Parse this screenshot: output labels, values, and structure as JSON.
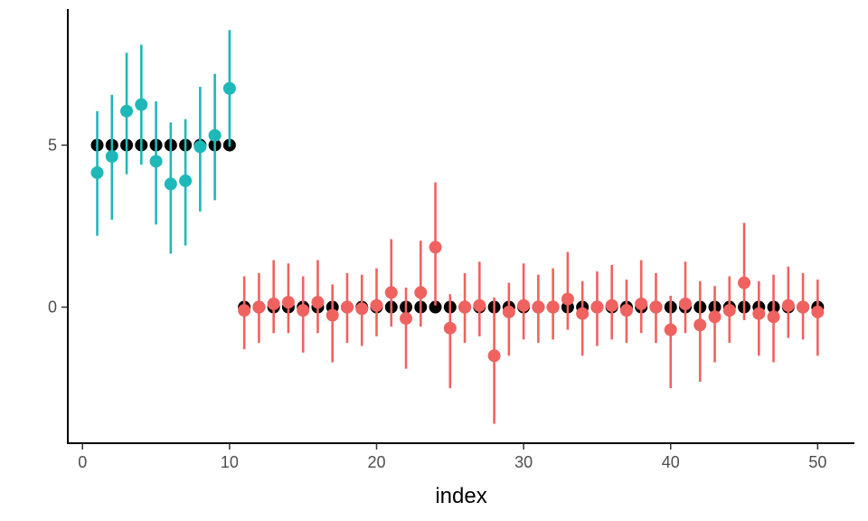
{
  "chart_data": {
    "type": "scatter",
    "title": "",
    "xlabel": "index",
    "ylabel": "",
    "xlim": [
      -1,
      52.5
    ],
    "ylim": [
      -4.2,
      9.2
    ],
    "x_ticks": [
      0,
      10,
      20,
      30,
      40,
      50
    ],
    "y_ticks": [
      0,
      5
    ],
    "grid": false,
    "legend": "none",
    "colors": {
      "truth": "#000000",
      "group_a": "#1fb8b8",
      "group_b": "#f0625f"
    },
    "series": [
      {
        "role": "truth",
        "x": [
          1,
          2,
          3,
          4,
          5,
          6,
          7,
          8,
          9,
          10,
          11,
          12,
          13,
          14,
          15,
          16,
          17,
          18,
          19,
          20,
          21,
          22,
          23,
          24,
          25,
          26,
          27,
          28,
          29,
          30,
          31,
          32,
          33,
          34,
          35,
          36,
          37,
          38,
          39,
          40,
          41,
          42,
          43,
          44,
          45,
          46,
          47,
          48,
          49,
          50
        ],
        "y": [
          5,
          5,
          5,
          5,
          5,
          5,
          5,
          5,
          5,
          5,
          0,
          0,
          0,
          0,
          0,
          0,
          0,
          0,
          0,
          0,
          0,
          0,
          0,
          0,
          0,
          0,
          0,
          0,
          0,
          0,
          0,
          0,
          0,
          0,
          0,
          0,
          0,
          0,
          0,
          0,
          0,
          0,
          0,
          0,
          0,
          0,
          0,
          0,
          0,
          0
        ]
      },
      {
        "role": "group_a",
        "x": [
          1,
          2,
          3,
          4,
          5,
          6,
          7,
          8,
          9,
          10
        ],
        "y": [
          4.15,
          4.65,
          6.05,
          6.25,
          4.5,
          3.8,
          3.9,
          4.95,
          5.3,
          6.75
        ],
        "low": [
          2.2,
          2.7,
          4.1,
          4.4,
          2.55,
          1.65,
          1.9,
          2.95,
          3.3,
          4.95
        ],
        "high": [
          6.05,
          6.55,
          7.85,
          8.1,
          6.35,
          5.7,
          5.8,
          6.8,
          7.2,
          8.55
        ]
      },
      {
        "role": "group_b",
        "x": [
          11,
          12,
          13,
          14,
          15,
          16,
          17,
          18,
          19,
          20,
          21,
          22,
          23,
          24,
          25,
          26,
          27,
          28,
          29,
          30,
          31,
          32,
          33,
          34,
          35,
          36,
          37,
          38,
          39,
          40,
          41,
          42,
          43,
          44,
          45,
          46,
          47,
          48,
          49,
          50
        ],
        "y": [
          -0.1,
          0.0,
          0.1,
          0.15,
          -0.1,
          0.15,
          -0.25,
          0.0,
          -0.05,
          0.05,
          0.45,
          -0.35,
          0.45,
          1.85,
          -0.65,
          0.0,
          0.05,
          -1.5,
          -0.15,
          0.05,
          0.0,
          0.0,
          0.25,
          -0.2,
          0.0,
          0.05,
          -0.1,
          0.1,
          0.0,
          -0.7,
          0.1,
          -0.55,
          -0.3,
          -0.1,
          0.75,
          -0.2,
          -0.3,
          0.05,
          0.0,
          -0.15
        ],
        "low": [
          -1.3,
          -1.1,
          -0.8,
          -0.8,
          -1.4,
          -0.8,
          -1.7,
          -1.1,
          -1.2,
          -0.9,
          -0.6,
          -1.9,
          -0.6,
          0.05,
          -2.5,
          -1.1,
          -0.9,
          -3.6,
          -1.5,
          -1.0,
          -1.1,
          -1.0,
          -0.7,
          -1.5,
          -1.2,
          -1.0,
          -1.1,
          -0.8,
          -1.1,
          -2.5,
          -0.8,
          -2.3,
          -1.7,
          -1.1,
          -0.4,
          -1.5,
          -1.7,
          -0.95,
          -1.0,
          -1.5
        ],
        "high": [
          0.95,
          1.05,
          1.45,
          1.35,
          0.95,
          1.45,
          0.7,
          1.05,
          1.0,
          1.2,
          2.1,
          0.6,
          2.05,
          3.85,
          0.4,
          1.05,
          1.4,
          0.3,
          0.75,
          1.35,
          1.0,
          1.2,
          1.7,
          0.8,
          1.1,
          1.3,
          0.85,
          1.45,
          1.05,
          0.35,
          1.4,
          0.8,
          0.65,
          0.95,
          2.6,
          0.8,
          1.0,
          1.25,
          1.05,
          0.85
        ]
      }
    ]
  }
}
